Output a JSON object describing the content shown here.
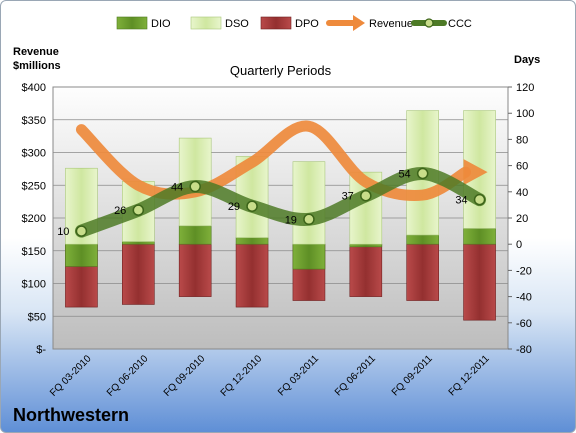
{
  "company": "Northwestern",
  "chart_data": {
    "type": "bar",
    "title": "Quarterly Periods",
    "left_axis_label_line1": "Revenue",
    "left_axis_label_line2": "$millions",
    "right_axis_label": "Days",
    "categories": [
      "FQ 03-2010",
      "FQ 06-2010",
      "FQ 09-2010",
      "FQ 12-2010",
      "FQ 03-2011",
      "FQ 06-2011",
      "FQ 09-2011",
      "FQ 12-2011"
    ],
    "left_ylim": [
      0,
      400
    ],
    "left_ticks": [
      "$-",
      "$50",
      "$100",
      "$150",
      "$200",
      "$250",
      "$300",
      "$350",
      "$400"
    ],
    "right_ylim": [
      -80,
      120
    ],
    "right_ticks": [
      "-80",
      "-60",
      "-40",
      "-20",
      "0",
      "20",
      "40",
      "60",
      "80",
      "100",
      "120"
    ],
    "series": [
      {
        "name": "DIO",
        "axis": "right",
        "kind": "stacked-bar",
        "color": "#6a9c2e",
        "values": [
          -17,
          2,
          14,
          5,
          -19,
          -2,
          7,
          12
        ]
      },
      {
        "name": "DSO",
        "axis": "right",
        "kind": "stacked-bar",
        "color": "#d9eeb3",
        "values": [
          58,
          46,
          67,
          62,
          63,
          55,
          95,
          90
        ]
      },
      {
        "name": "DPO",
        "axis": "right",
        "kind": "negative-bar",
        "color": "#a33535",
        "values": [
          -48,
          -46,
          -40,
          -48,
          -43,
          -40,
          -43,
          -58
        ]
      },
      {
        "name": "Revenue",
        "axis": "left",
        "kind": "line",
        "color": "#ee8a3c",
        "values": [
          335,
          250,
          240,
          285,
          340,
          255,
          235,
          270
        ]
      },
      {
        "name": "CCC",
        "axis": "right",
        "kind": "line",
        "color": "#4d7a26",
        "values": [
          10,
          26,
          44,
          29,
          19,
          37,
          54,
          34
        ]
      }
    ],
    "ccc_labels": [
      "10",
      "26",
      "44",
      "29",
      "19",
      "37",
      "54",
      "34"
    ],
    "legend_position": "top",
    "grid": true
  }
}
